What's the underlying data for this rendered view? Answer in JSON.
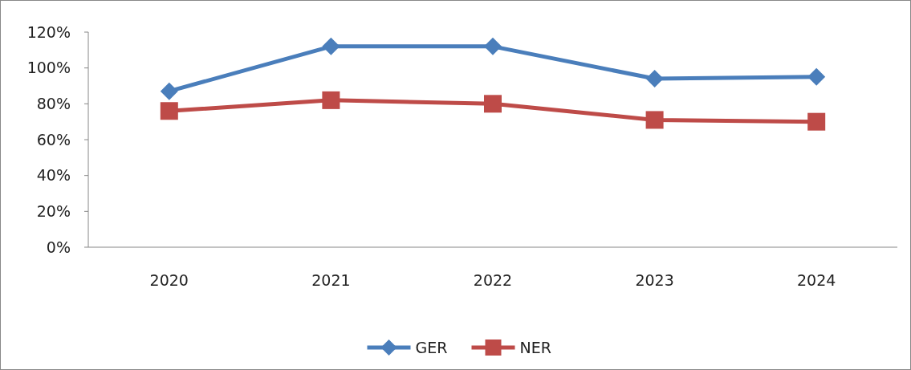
{
  "chart_data": {
    "type": "line",
    "categories": [
      "2020",
      "2021",
      "2022",
      "2023",
      "2024"
    ],
    "series": [
      {
        "name": "GER",
        "color": "#4a7ebb",
        "values": [
          87,
          112,
          112,
          94,
          95
        ],
        "marker": "diamond"
      },
      {
        "name": "NER",
        "color": "#be4b48",
        "values": [
          76,
          82,
          80,
          71,
          70
        ],
        "marker": "square"
      }
    ],
    "ylim": [
      0,
      120
    ],
    "yticks": [
      {
        "value": 0,
        "label": "0%"
      },
      {
        "value": 20,
        "label": "20%"
      },
      {
        "value": 40,
        "label": "40%"
      },
      {
        "value": 60,
        "label": "60%"
      },
      {
        "value": 80,
        "label": "80%"
      },
      {
        "value": 100,
        "label": "100%"
      },
      {
        "value": 120,
        "label": "120%"
      }
    ],
    "grid": false,
    "legend": "bottom",
    "line_style": "solid"
  }
}
